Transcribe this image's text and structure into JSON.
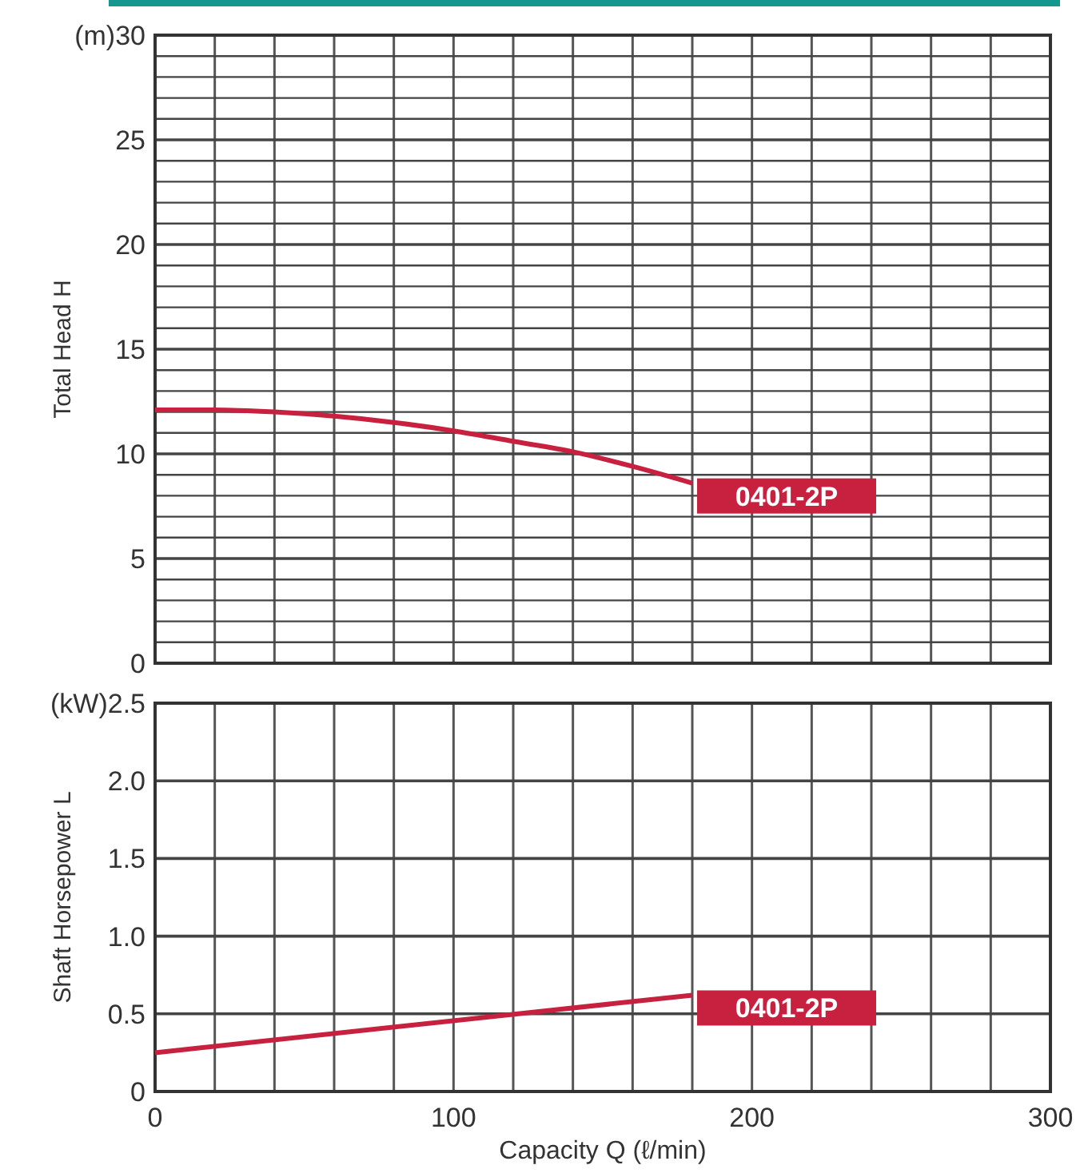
{
  "chart_data": [
    {
      "type": "line",
      "ylabel": "Total Head H",
      "xlim": [
        0,
        300
      ],
      "ylim": [
        0,
        30
      ],
      "x": [
        0,
        20,
        40,
        60,
        80,
        100,
        120,
        140,
        160,
        180
      ],
      "series": [
        {
          "name": "0401-2P",
          "color": "#c8203f",
          "values": [
            12.1,
            12.1,
            12.0,
            11.8,
            11.5,
            11.1,
            10.6,
            10.1,
            9.4,
            8.6
          ]
        }
      ],
      "xticks": [
        0,
        {
          "value": 20,
          "label": null
        },
        {
          "value": 40,
          "label": null
        },
        {
          "value": 60,
          "label": null
        },
        {
          "value": 80,
          "label": null
        },
        100,
        {
          "value": 120,
          "label": null
        },
        {
          "value": 140,
          "label": null
        },
        {
          "value": 160,
          "label": null
        },
        {
          "value": 180,
          "label": null
        },
        200,
        {
          "value": 220,
          "label": null
        },
        {
          "value": 240,
          "label": null
        },
        {
          "value": 260,
          "label": null
        },
        {
          "value": 280,
          "label": null
        },
        300
      ],
      "yticks": [
        0,
        {
          "value": 1,
          "label": null
        },
        {
          "value": 2,
          "label": null
        },
        {
          "value": 3,
          "label": null
        },
        {
          "value": 4,
          "label": null
        },
        5,
        {
          "value": 6,
          "label": null
        },
        {
          "value": 7,
          "label": null
        },
        {
          "value": 8,
          "label": null
        },
        {
          "value": 9,
          "label": null
        },
        10,
        {
          "value": 11,
          "label": null
        },
        {
          "value": 12,
          "label": null
        },
        {
          "value": 13,
          "label": null
        },
        {
          "value": 14,
          "label": null
        },
        15,
        {
          "value": 16,
          "label": null
        },
        {
          "value": 17,
          "label": null
        },
        {
          "value": 18,
          "label": null
        },
        {
          "value": 19,
          "label": null
        },
        20,
        {
          "value": 21,
          "label": null
        },
        {
          "value": 22,
          "label": null
        },
        {
          "value": 23,
          "label": null
        },
        {
          "value": 24,
          "label": null
        },
        25,
        {
          "value": 26,
          "label": null
        },
        {
          "value": 27,
          "label": null
        },
        {
          "value": 28,
          "label": null
        },
        {
          "value": 29,
          "label": null
        },
        {
          "value": 30,
          "label": "(m)30"
        }
      ],
      "grid": true,
      "tick_labels": "y",
      "line_style": "solid"
    },
    {
      "type": "line",
      "ylabel": "Shaft Horsepower L",
      "xlabel": "Capacity Q (ℓ/min)",
      "xlim": [
        0,
        300
      ],
      "ylim": [
        0,
        2.5
      ],
      "x": [
        0,
        180
      ],
      "series": [
        {
          "name": "0401-2P",
          "color": "#c8203f",
          "values": [
            0.25,
            0.62
          ]
        }
      ],
      "xticks": [
        0,
        {
          "value": 20,
          "label": null
        },
        {
          "value": 40,
          "label": null
        },
        {
          "value": 60,
          "label": null
        },
        {
          "value": 80,
          "label": null
        },
        100,
        {
          "value": 120,
          "label": null
        },
        {
          "value": 140,
          "label": null
        },
        {
          "value": 160,
          "label": null
        },
        {
          "value": 180,
          "label": null
        },
        200,
        {
          "value": 220,
          "label": null
        },
        {
          "value": 240,
          "label": null
        },
        {
          "value": 260,
          "label": null
        },
        {
          "value": 280,
          "label": null
        },
        300
      ],
      "yticks": [
        0,
        {
          "value": 0.5,
          "label": "0.5"
        },
        {
          "value": 1,
          "label": "1.0"
        },
        {
          "value": 1.5,
          "label": "1.5"
        },
        {
          "value": 2,
          "label": "2.0"
        },
        {
          "value": 2.5,
          "label": "(kW)2.5"
        }
      ],
      "grid": true,
      "line_style": "solid"
    }
  ]
}
